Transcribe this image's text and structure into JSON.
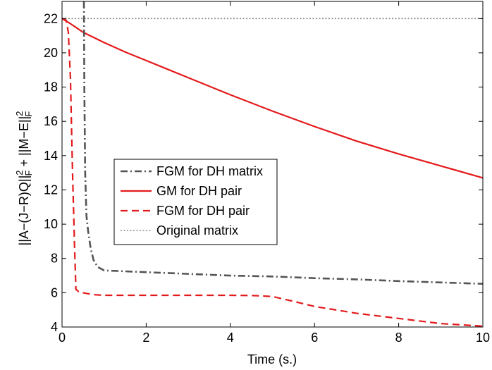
{
  "chart_data": {
    "type": "line",
    "title": "",
    "xlabel": "Time (s.)",
    "ylabel_parts": {
      "a": "||A−(J−R)Q||",
      "a_sup": "2",
      "a_sub": "F",
      "plus": " + ||M−E||",
      "b_sup": "2",
      "b_sub": "F"
    },
    "xlim": [
      0,
      10
    ],
    "ylim": [
      4,
      23
    ],
    "xticks": [
      0,
      2,
      4,
      6,
      8,
      10
    ],
    "yticks": [
      4,
      6,
      8,
      10,
      12,
      14,
      16,
      18,
      20,
      22
    ],
    "grid": false,
    "legend_position": "center-left",
    "series": [
      {
        "name": "FGM for DH matrix",
        "color": "#555555",
        "style": "dashdot",
        "x": [
          0.52,
          0.53,
          0.55,
          0.58,
          0.62,
          0.68,
          0.75,
          0.85,
          1.0,
          1.2,
          1.5,
          2.0,
          3.0,
          4.0,
          5.0,
          6.0,
          7.0,
          8.0,
          9.0,
          10.0
        ],
        "y": [
          23.0,
          18.0,
          13.0,
          10.5,
          9.6,
          8.6,
          7.9,
          7.5,
          7.3,
          7.28,
          7.25,
          7.2,
          7.1,
          7.0,
          6.95,
          6.85,
          6.78,
          6.68,
          6.6,
          6.52
        ]
      },
      {
        "name": "GM for DH pair",
        "color": "#e31a1c",
        "style": "solid",
        "x": [
          0.0,
          0.1,
          0.2,
          0.35,
          0.5,
          1.0,
          1.5,
          2.0,
          2.5,
          3.0,
          3.5,
          4.0,
          5.0,
          6.0,
          7.0,
          8.0,
          9.0,
          10.0
        ],
        "y": [
          22.0,
          21.85,
          21.7,
          21.45,
          21.2,
          20.6,
          20.05,
          19.55,
          19.05,
          18.55,
          18.05,
          17.55,
          16.6,
          15.7,
          14.85,
          14.1,
          13.4,
          12.7
        ]
      },
      {
        "name": "FGM for DH pair",
        "color": "#e31a1c",
        "style": "dashed",
        "x": [
          0.0,
          0.1,
          0.15,
          0.2,
          0.25,
          0.3,
          0.33,
          0.4,
          0.6,
          0.8,
          1.0,
          2.0,
          3.0,
          4.0,
          4.5,
          5.0,
          5.5,
          6.0,
          7.0,
          8.0,
          9.0,
          10.0
        ],
        "y": [
          22.0,
          21.9,
          21.2,
          18.5,
          13.0,
          8.5,
          6.2,
          6.05,
          5.95,
          5.88,
          5.85,
          5.85,
          5.85,
          5.85,
          5.84,
          5.78,
          5.5,
          5.2,
          4.8,
          4.5,
          4.2,
          4.05
        ]
      },
      {
        "name": "Original matrix",
        "color": "#888888",
        "style": "dotted",
        "x": [
          0.0,
          10.0
        ],
        "y": [
          22.0,
          22.0
        ]
      }
    ]
  }
}
